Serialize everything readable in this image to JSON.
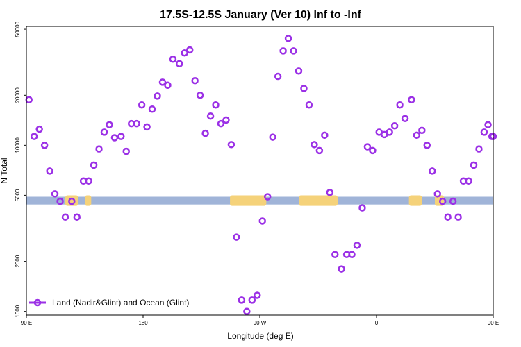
{
  "chart_data": {
    "type": "scatter",
    "title": "17.5S-12.5S January (Ver 10)   Inf to -Inf",
    "xlabel": "Longitude (deg E)",
    "ylabel": "N Total",
    "y_scale": "log",
    "xlim": [
      90,
      450
    ],
    "ylim": [
      950,
      52000
    ],
    "x_ticks": [
      {
        "value": 90,
        "label": "90 E"
      },
      {
        "value": 180,
        "label": "180"
      },
      {
        "value": 270,
        "label": "90 W"
      },
      {
        "value": 360,
        "label": "0"
      },
      {
        "value": 450,
        "label": "90 E"
      }
    ],
    "y_ticks": [
      {
        "value": 1000,
        "label": "1000"
      },
      {
        "value": 2000,
        "label": "2000"
      },
      {
        "value": 5000,
        "label": "5000"
      },
      {
        "value": 10000,
        "label": "10000"
      },
      {
        "value": 20000,
        "label": "20000"
      },
      {
        "value": 50000,
        "label": "50000"
      }
    ],
    "colors": {
      "points": "#9b30e6",
      "ocean_band": "#a0b4d8",
      "land_band": "#f5d27a",
      "axis": "#000000"
    },
    "surface_band": {
      "y_range": [
        4400,
        4900
      ],
      "land_segments": [
        [
          120,
          130
        ],
        [
          135,
          140
        ],
        [
          247,
          275
        ],
        [
          300,
          330
        ],
        [
          385,
          395
        ],
        [
          405,
          412
        ]
      ]
    },
    "legend": {
      "position": "bottom-left",
      "entries": [
        {
          "label": "Land (Nadir&Glint) and Ocean (Glint)"
        }
      ]
    },
    "series": [
      {
        "name": "Land (Nadir&Glint) and Ocean (Glint)",
        "points": [
          [
            92,
            18800
          ],
          [
            96,
            11300
          ],
          [
            100,
            12500
          ],
          [
            104,
            10000
          ],
          [
            108,
            7000
          ],
          [
            112,
            5100
          ],
          [
            116,
            4600
          ],
          [
            120,
            3700
          ],
          [
            125,
            4600
          ],
          [
            129,
            3700
          ],
          [
            134,
            6100
          ],
          [
            138,
            6100
          ],
          [
            142,
            7600
          ],
          [
            146,
            9500
          ],
          [
            150,
            12000
          ],
          [
            154,
            13300
          ],
          [
            158,
            11100
          ],
          [
            163,
            11300
          ],
          [
            167,
            9200
          ],
          [
            171,
            13500
          ],
          [
            175,
            13500
          ],
          [
            179,
            17500
          ],
          [
            183,
            12900
          ],
          [
            187,
            16500
          ],
          [
            191,
            19800
          ],
          [
            195,
            24000
          ],
          [
            199,
            23000
          ],
          [
            203,
            33000
          ],
          [
            208,
            31000
          ],
          [
            212,
            36000
          ],
          [
            216,
            37500
          ],
          [
            220,
            24500
          ],
          [
            224,
            20000
          ],
          [
            228,
            11800
          ],
          [
            232,
            15000
          ],
          [
            236,
            17500
          ],
          [
            240,
            13500
          ],
          [
            244,
            14200
          ],
          [
            248,
            10100
          ],
          [
            252,
            2800
          ],
          [
            256,
            1170
          ],
          [
            260,
            1000
          ],
          [
            264,
            1170
          ],
          [
            268,
            1250
          ],
          [
            272,
            3500
          ],
          [
            276,
            4900
          ],
          [
            280,
            11200
          ],
          [
            284,
            26000
          ],
          [
            288,
            37000
          ],
          [
            292,
            44000
          ],
          [
            296,
            37000
          ],
          [
            300,
            28000
          ],
          [
            304,
            22000
          ],
          [
            308,
            17500
          ],
          [
            312,
            10100
          ],
          [
            316,
            9300
          ],
          [
            320,
            11500
          ],
          [
            324,
            5200
          ],
          [
            328,
            2200
          ],
          [
            333,
            1800
          ],
          [
            337,
            2200
          ],
          [
            341,
            2200
          ],
          [
            345,
            2500
          ],
          [
            349,
            4200
          ],
          [
            353,
            9800
          ],
          [
            357,
            9300
          ],
          [
            362,
            12000
          ],
          [
            366,
            11600
          ],
          [
            370,
            12000
          ],
          [
            374,
            13100
          ],
          [
            378,
            17500
          ],
          [
            382,
            14500
          ],
          [
            387,
            18800
          ],
          [
            391,
            11500
          ],
          [
            395,
            12300
          ],
          [
            399,
            10000
          ],
          [
            403,
            7000
          ],
          [
            407,
            5100
          ],
          [
            411,
            4600
          ],
          [
            415,
            3700
          ],
          [
            419,
            4600
          ],
          [
            423,
            3700
          ],
          [
            427,
            6100
          ],
          [
            431,
            6100
          ],
          [
            435,
            7600
          ],
          [
            439,
            9500
          ],
          [
            443,
            12000
          ],
          [
            446,
            13300
          ],
          [
            449,
            11300
          ],
          [
            453,
            11300
          ]
        ]
      }
    ]
  }
}
